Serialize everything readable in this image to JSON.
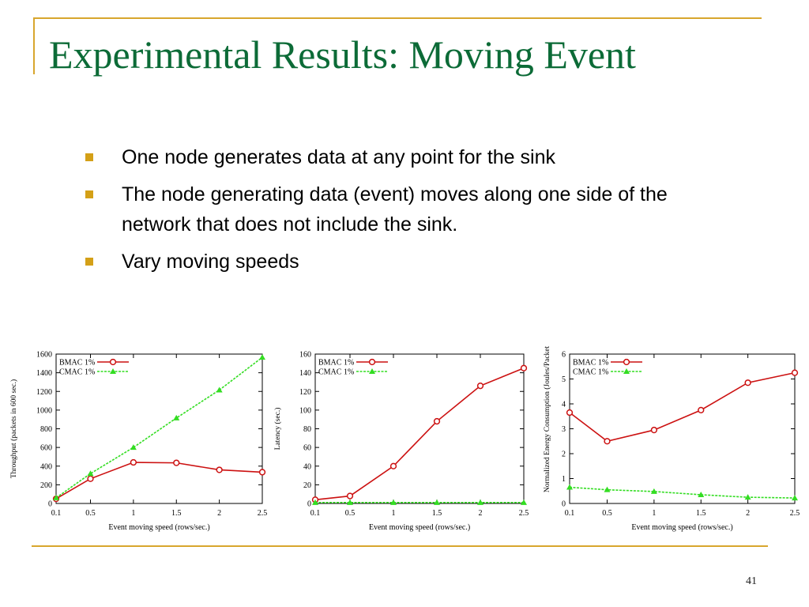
{
  "slide": {
    "title": "Experimental Results: Moving Event",
    "bullets": [
      "One node generates data at any point for the sink",
      "The  node generating data (event) moves along one side of the network that does not include the sink.",
      "Vary moving speeds"
    ],
    "page_number": "41"
  },
  "colors": {
    "title": "#0c6b37",
    "rule": "#d8a62e",
    "bullet": "#d4a017",
    "bmac": "#cc1111",
    "cmac": "#33dd22"
  },
  "chart_data": [
    {
      "type": "line",
      "xlabel": "Event moving speed (rows/sec.)",
      "ylabel": "Throughput (packets in 600 sec.)",
      "categories": [
        "0.1",
        "0.5",
        "1",
        "1.5",
        "2",
        "2.5"
      ],
      "ylim": [
        0,
        1600
      ],
      "yticks": [
        0,
        200,
        400,
        600,
        800,
        1000,
        1200,
        1400,
        1600
      ],
      "legend": "top-left",
      "series": [
        {
          "name": "BMAC 1%",
          "marker": "circle",
          "color": "#cc1111",
          "values": [
            50,
            265,
            440,
            435,
            360,
            335
          ]
        },
        {
          "name": "CMAC 1%",
          "marker": "triangle",
          "color": "#33dd22",
          "values": [
            60,
            320,
            600,
            915,
            1215,
            1565
          ]
        }
      ]
    },
    {
      "type": "line",
      "xlabel": "Event moving speed (rows/sec.)",
      "ylabel": "Latency (sec.)",
      "categories": [
        "0.1",
        "0.5",
        "1",
        "1.5",
        "2",
        "2.5"
      ],
      "ylim": [
        0,
        160
      ],
      "yticks": [
        0,
        20,
        40,
        60,
        80,
        100,
        120,
        140,
        160
      ],
      "legend": "top-left",
      "series": [
        {
          "name": "BMAC 1%",
          "marker": "circle",
          "color": "#cc1111",
          "values": [
            4,
            8,
            40,
            88,
            126,
            145
          ]
        },
        {
          "name": "CMAC 1%",
          "marker": "triangle",
          "color": "#33dd22",
          "values": [
            1,
            1,
            1,
            1,
            1,
            1
          ]
        }
      ]
    },
    {
      "type": "line",
      "xlabel": "Event moving speed (rows/sec.)",
      "ylabel": "Normalized Energy Consumption (Joules/Packet",
      "categories": [
        "0.1",
        "0.5",
        "1",
        "1.5",
        "2",
        "2.5"
      ],
      "ylim": [
        0,
        6
      ],
      "yticks": [
        0,
        1,
        2,
        3,
        4,
        5,
        6
      ],
      "legend": "top-left",
      "series": [
        {
          "name": "BMAC 1%",
          "marker": "circle",
          "color": "#cc1111",
          "values": [
            3.65,
            2.5,
            2.95,
            3.75,
            4.85,
            5.25
          ]
        },
        {
          "name": "CMAC 1%",
          "marker": "triangle",
          "color": "#33dd22",
          "values": [
            0.65,
            0.55,
            0.48,
            0.35,
            0.25,
            0.22
          ]
        }
      ]
    }
  ]
}
